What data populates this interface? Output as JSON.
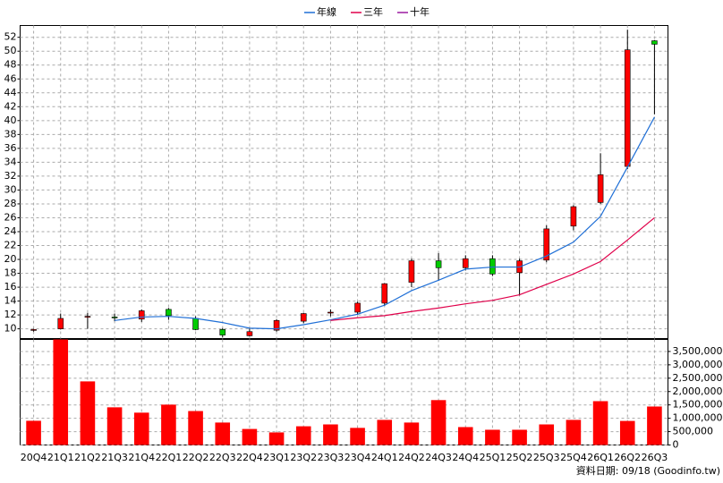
{
  "chart_data": {
    "type": "candlestick",
    "categories": [
      "20Q4",
      "21Q1",
      "21Q2",
      "21Q3",
      "21Q4",
      "22Q1",
      "22Q2",
      "22Q3",
      "22Q4",
      "23Q1",
      "23Q2",
      "23Q3",
      "23Q4",
      "24Q1",
      "24Q2",
      "24Q3",
      "24Q4",
      "25Q1",
      "25Q2",
      "25Q3",
      "25Q4",
      "26Q1",
      "26Q2",
      "26Q3"
    ],
    "open": [
      9.8,
      10.0,
      11.8,
      11.7,
      11.4,
      12.8,
      11.5,
      9.9,
      9.0,
      9.8,
      11.1,
      12.3,
      12.4,
      13.7,
      16.7,
      19.8,
      18.8,
      20.1,
      18.1,
      19.9,
      24.8,
      28.2,
      33.4,
      51.5
    ],
    "high": [
      10.0,
      12.2,
      12.3,
      12.2,
      12.8,
      13.0,
      11.8,
      10.1,
      10.1,
      11.4,
      12.3,
      12.8,
      13.9,
      16.6,
      20.1,
      20.9,
      20.6,
      20.6,
      20.1,
      24.9,
      27.8,
      35.3,
      53.1,
      51.6
    ],
    "low": [
      9.6,
      9.9,
      10.0,
      11.1,
      11.0,
      11.3,
      9.8,
      8.8,
      8.9,
      9.6,
      10.8,
      11.8,
      12.0,
      13.3,
      16.0,
      16.9,
      18.4,
      17.6,
      14.8,
      19.6,
      24.2,
      28.0,
      33.0,
      40.9
    ],
    "close": [
      9.9,
      11.5,
      11.8,
      11.6,
      12.6,
      11.9,
      9.9,
      9.1,
      9.6,
      11.2,
      12.2,
      12.4,
      13.7,
      16.5,
      19.8,
      18.8,
      20.1,
      17.9,
      19.8,
      24.4,
      27.6,
      32.2,
      50.2,
      51.0
    ],
    "up_color": "#ff0000",
    "down_color": "#00cc00",
    "ylim": [
      8.6,
      53.7
    ],
    "yticks": [
      10,
      12,
      14,
      16,
      18,
      20,
      22,
      24,
      26,
      28,
      30,
      32,
      34,
      36,
      38,
      40,
      42,
      44,
      46,
      48,
      50,
      52
    ],
    "grid": true,
    "lines": [
      {
        "name": "年線",
        "color": "#1f6fd6",
        "values": [
          null,
          null,
          null,
          11.2,
          11.7,
          11.8,
          11.5,
          10.9,
          10.1,
          10.0,
          10.6,
          11.3,
          12.1,
          13.4,
          15.5,
          17.0,
          18.6,
          18.9,
          18.9,
          20.5,
          22.5,
          26.2,
          33.3,
          40.5
        ]
      },
      {
        "name": "三年",
        "color": "#e0004a",
        "values": [
          null,
          null,
          null,
          null,
          null,
          null,
          null,
          null,
          null,
          null,
          null,
          11.2,
          11.6,
          11.9,
          12.5,
          13.0,
          13.6,
          14.1,
          14.9,
          16.4,
          17.9,
          19.7,
          22.8,
          26.0
        ]
      },
      {
        "name": "十年",
        "color": "#9b1aa0",
        "values": [
          null,
          null,
          null,
          null,
          null,
          null,
          null,
          null,
          null,
          null,
          null,
          null,
          null,
          null,
          null,
          null,
          null,
          null,
          null,
          null,
          null,
          null,
          null,
          null
        ]
      }
    ],
    "volume": {
      "color": "#ff0000",
      "values": [
        906000,
        3950000,
        2380000,
        1410000,
        1210000,
        1510000,
        1270000,
        840000,
        600000,
        470000,
        700000,
        770000,
        640000,
        940000,
        840000,
        1680000,
        670000,
        570000,
        570000,
        770000,
        940000,
        1640000,
        900000,
        1440000
      ],
      "ylim": [
        0,
        3950000
      ],
      "yticks": [
        0,
        {
          "value": 500000,
          "label": "500,000"
        },
        {
          "value": 1000000,
          "label": "1,000,000"
        },
        {
          "value": 1500000,
          "label": "1,500,000"
        },
        {
          "value": 2000000,
          "label": "2,000,000"
        },
        {
          "value": 2500000,
          "label": "2,500,000"
        },
        {
          "value": 3000000,
          "label": "3,000,000"
        },
        {
          "value": 3500000,
          "label": "3,500,000"
        }
      ]
    },
    "footer": "資料日期: 09/18 (Goodinfo.tw)"
  }
}
